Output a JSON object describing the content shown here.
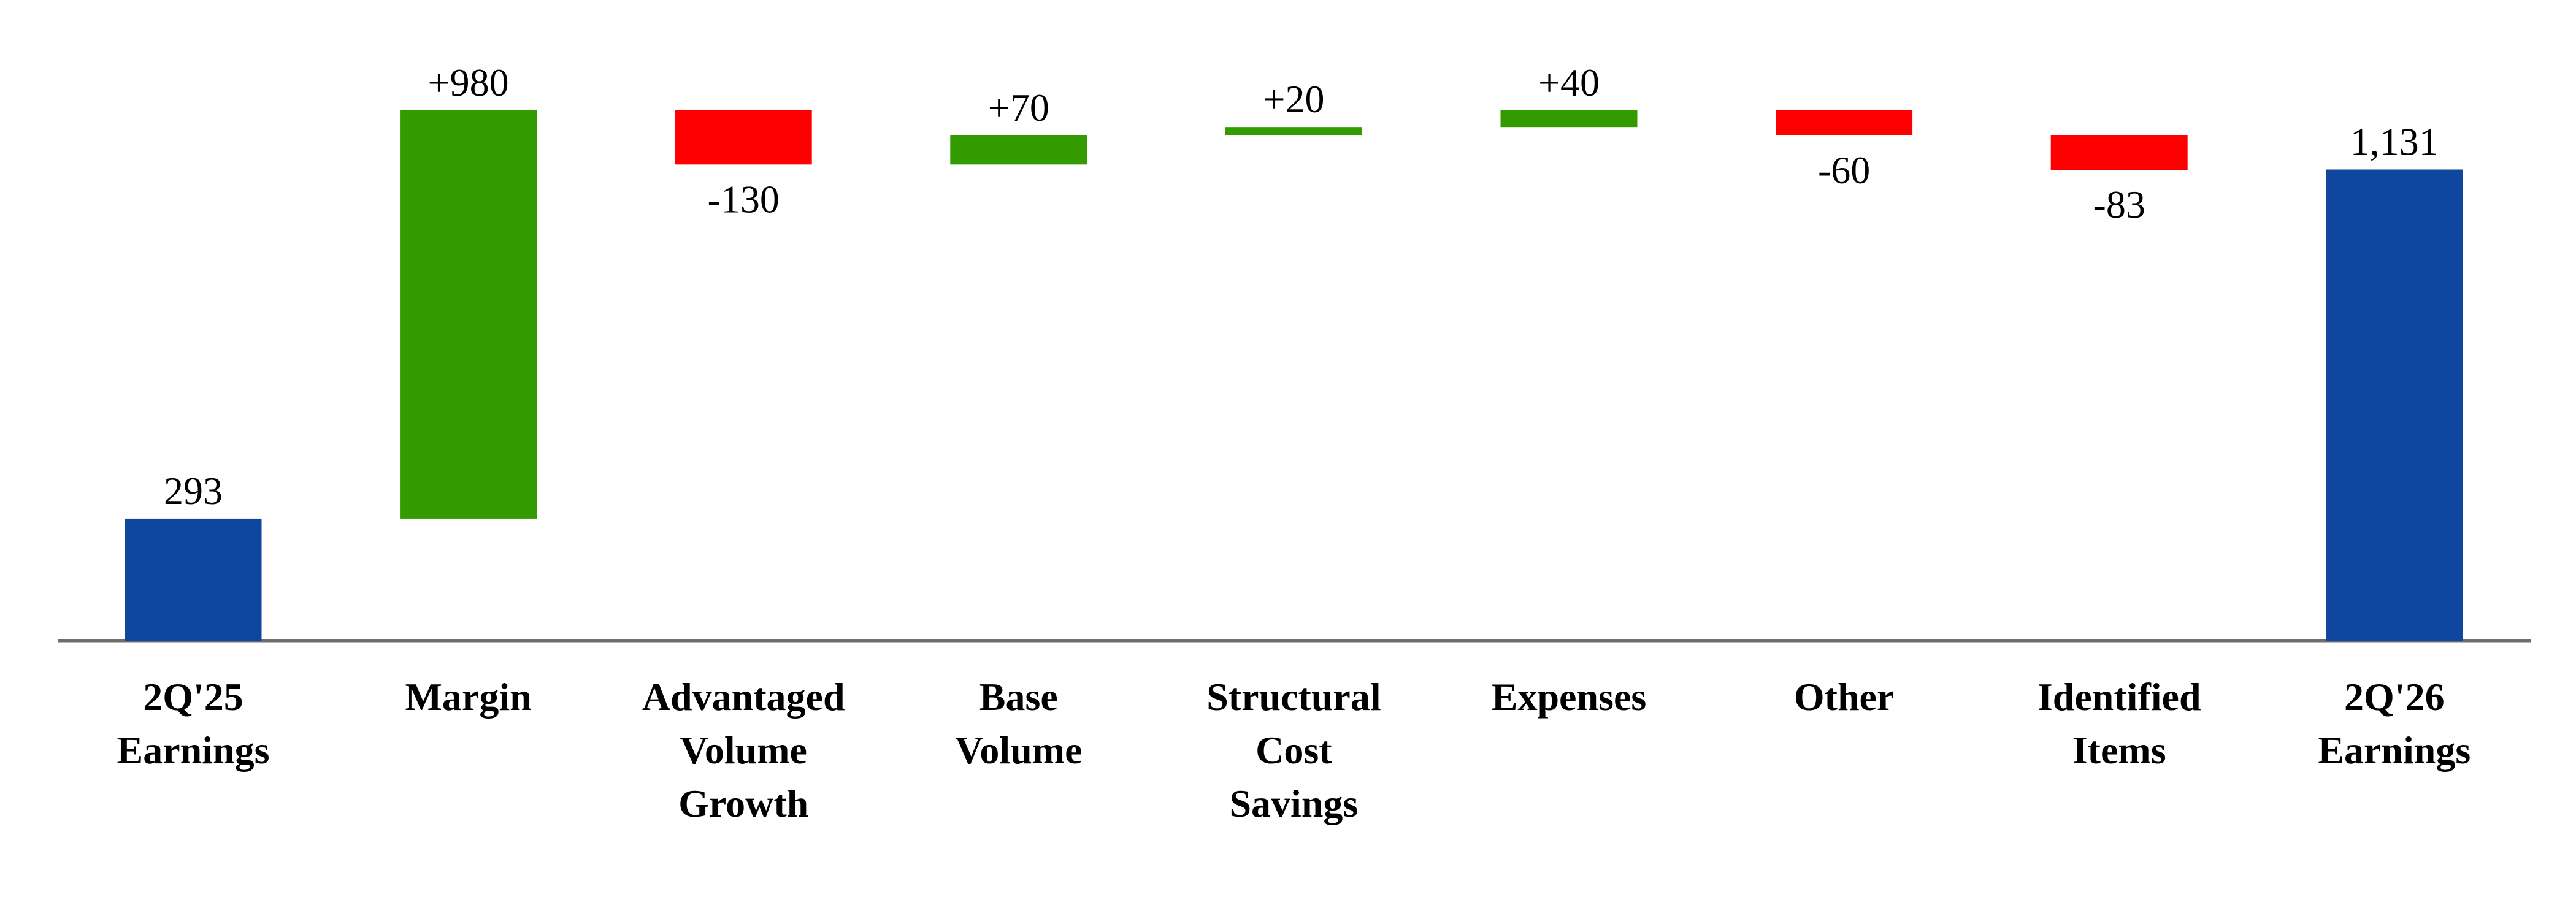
{
  "chart_data": {
    "type": "waterfall",
    "categories": [
      "2Q'25 Earnings",
      "Margin",
      "Advantaged Volume Growth",
      "Base Volume",
      "Structural Cost Savings",
      "Expenses",
      "Other",
      "Identified Items",
      "2Q'26 Earnings"
    ],
    "values": [
      293,
      980,
      -130,
      70,
      20,
      40,
      -60,
      -83,
      1131
    ],
    "value_labels": [
      "293",
      "+980",
      "-130",
      "+70",
      "+20",
      "+40",
      "-60",
      "-83",
      "1,131"
    ],
    "measures": [
      "total",
      "relative",
      "relative",
      "relative",
      "relative",
      "relative",
      "relative",
      "relative",
      "total"
    ],
    "colors": {
      "total": "#0e479d",
      "increase": "#339a00",
      "decrease": "#ff0000"
    }
  }
}
